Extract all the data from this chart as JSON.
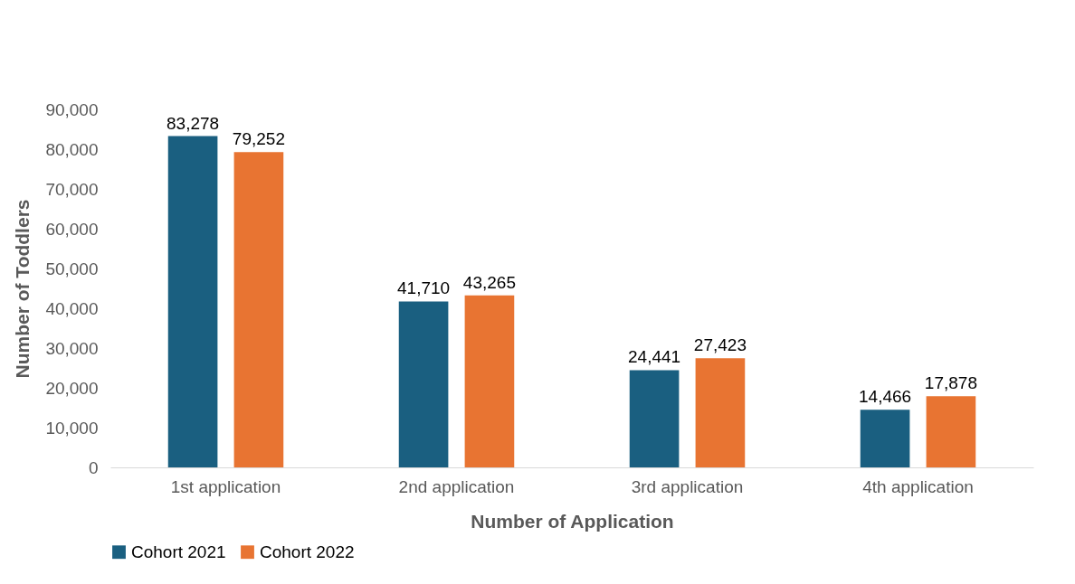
{
  "chart_data": {
    "type": "bar",
    "xlabel": "Number of Application",
    "ylabel": "Number of Toddlers",
    "categories": [
      "1st application",
      "2nd application",
      "3rd application",
      "4th application"
    ],
    "series": [
      {
        "name": "Cohort 2021",
        "color": "#1a5f80",
        "values": [
          83278,
          41710,
          24441,
          14466
        ],
        "value_labels": [
          "83,278",
          "41,710",
          "24,441",
          "14,466"
        ]
      },
      {
        "name": "Cohort 2022",
        "color": "#e87432",
        "values": [
          79252,
          43265,
          27423,
          17878
        ],
        "value_labels": [
          "79,252",
          "43,265",
          "27,423",
          "17,878"
        ]
      }
    ],
    "ylim": [
      0,
      90000
    ],
    "yticks": [
      0,
      {
        "value": 10000,
        "label": "10,000"
      },
      {
        "value": 20000,
        "label": "20,000"
      },
      {
        "value": 30000,
        "label": "30,000"
      },
      {
        "value": 40000,
        "label": "40,000"
      },
      {
        "value": 50000,
        "label": "50,000"
      },
      {
        "value": 60000,
        "label": "60,000"
      },
      {
        "value": 70000,
        "label": "70,000"
      },
      {
        "value": 80000,
        "label": "80,000"
      },
      {
        "value": 90000,
        "label": "90,000"
      }
    ],
    "legend": "bottom"
  }
}
